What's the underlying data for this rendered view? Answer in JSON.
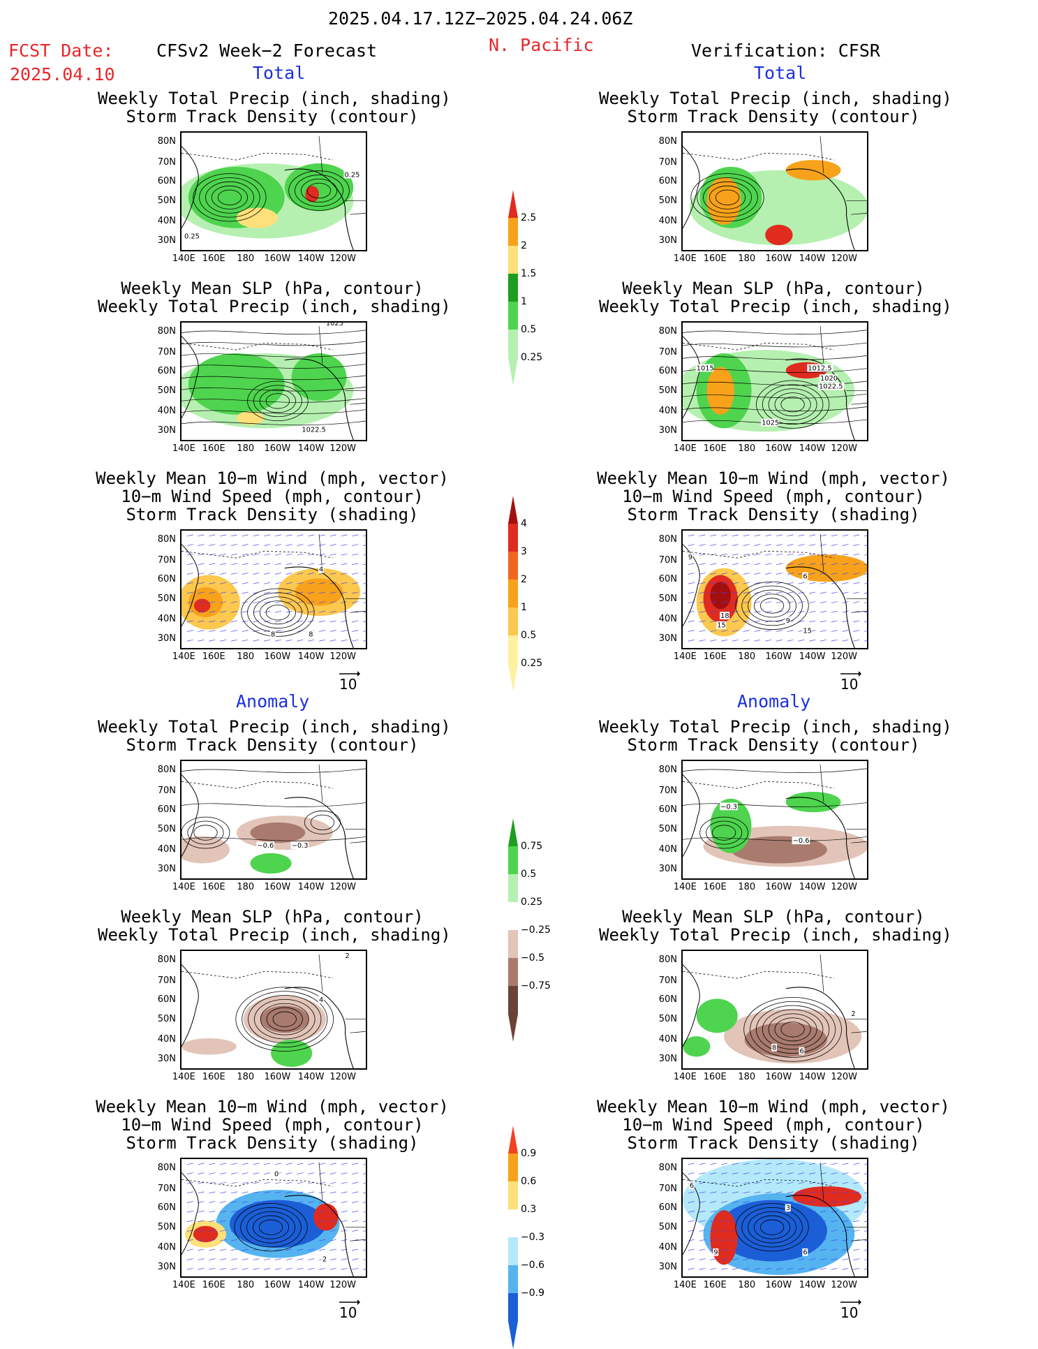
{
  "header": {
    "date_range": "2025.04.17.12Z−2025.04.24.06Z",
    "fcst_label": "FCST Date:",
    "fcst_date": "2025.04.10",
    "model": "CFSv2 Week−2 Forecast",
    "region": "N. Pacific",
    "verification": "Verification: CFSR"
  },
  "sections": {
    "total": "Total",
    "anomaly": "Anomaly"
  },
  "panel_titles": {
    "precip_storm": "Weekly Total Precip (inch, shading)\nStorm Track Density (contour)",
    "slp_precip": "Weekly Mean SLP (hPa, contour)\nWeekly Total Precip (inch, shading)",
    "wind": "Weekly Mean 10−m Wind (mph, vector)\n10−m Wind Speed (mph, contour)\nStorm Track Density (shading)"
  },
  "lat_labels": [
    "80N",
    "70N",
    "60N",
    "50N",
    "40N",
    "30N"
  ],
  "lon_labels": [
    "140E",
    "160E",
    "180",
    "160W",
    "140W",
    "120W"
  ],
  "vector_ref": "10",
  "colorbars": {
    "precip_total": {
      "labels": [
        "2.5",
        "2",
        "1.5",
        "1",
        "0.5",
        "0.25"
      ],
      "colors": [
        "#e02b1f",
        "#f7a21a",
        "#fde07a",
        "#1e9d1e",
        "#4ed44e",
        "#b5f0b0"
      ]
    },
    "storm_total": {
      "labels": [
        "4",
        "3",
        "2",
        "1",
        "0.5",
        "0.25"
      ],
      "colors": [
        "#a30f0f",
        "#e02b1f",
        "#f2651f",
        "#f7a21a",
        "#fcc84e",
        "#fff0a0"
      ]
    },
    "precip_anom": {
      "labels": [
        "0.75",
        "0.5",
        "0.25",
        "−0.25",
        "−0.5",
        "−0.75"
      ],
      "colors": [
        "#1e9d1e",
        "#4ed44e",
        "#b5f0b0",
        "#ffffff",
        "#e2c4b8",
        "#a97a6e",
        "#6b4236"
      ]
    },
    "storm_anom": {
      "labels": [
        "0.9",
        "0.6",
        "0.3",
        "−0.3",
        "−0.6",
        "−0.9"
      ],
      "colors": [
        "#f2421f",
        "#f7a21a",
        "#fde07a",
        "#ffffff",
        "#b4e9fb",
        "#55b4f0",
        "#1a5fd6"
      ]
    }
  },
  "contour_labels": {
    "a1_top": "0.25",
    "a1_bot": "0.25",
    "a2": "1022.5",
    "a2_top": "1025",
    "b2_a": "1015",
    "b2_b": "1012.5",
    "b2_c": "1020",
    "b2_d": "1022.5",
    "b2_e": "1025",
    "a3_a": "4",
    "a3_b": "8",
    "a3_c": "8",
    "b3_a": "9",
    "b3_b": "18",
    "b3_c": "15",
    "b3_d": "9",
    "b3_e": "15",
    "b3_f": "6",
    "a4_a": "−0.6",
    "a4_b": "−0.3",
    "b4_a": "−0.3",
    "b4_b": "−0.6",
    "a5_a": "2",
    "a5_b": "4",
    "b5_a": "8",
    "b5_b": "6",
    "b5_c": "2",
    "a6_a": "0",
    "a6_b": "2",
    "b6_a": "6",
    "b6_b": "3",
    "b6_c": "9",
    "b6_d": "6"
  }
}
